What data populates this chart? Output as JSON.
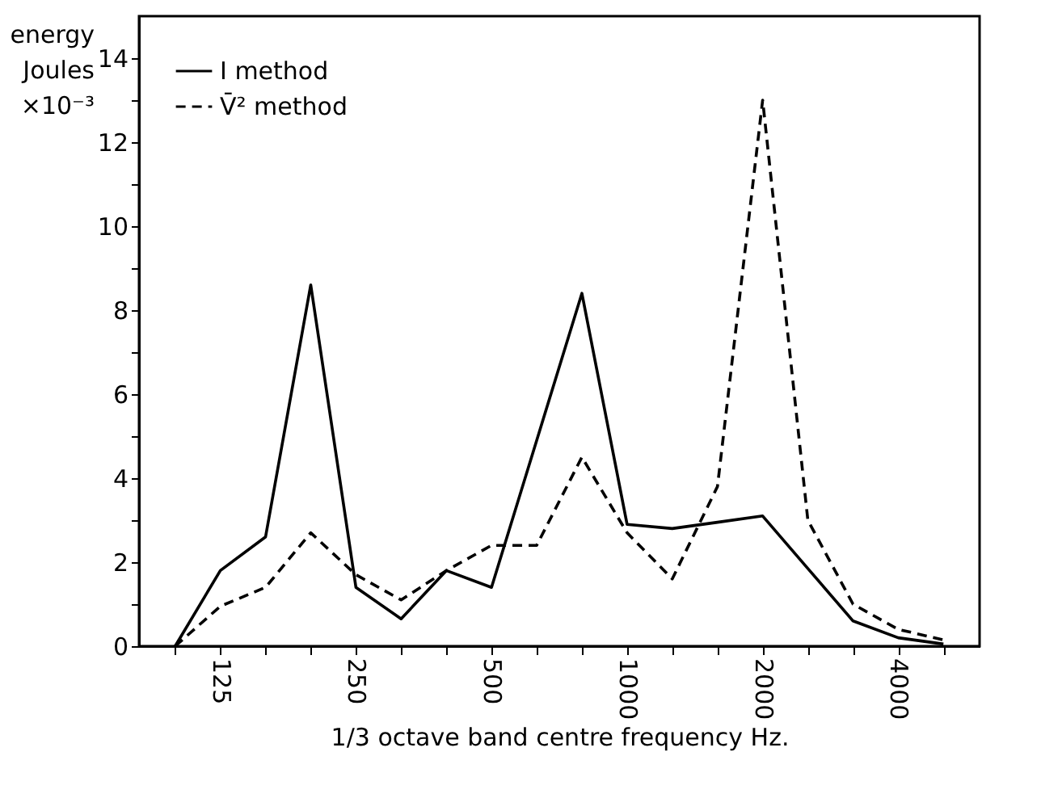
{
  "chart_data": {
    "type": "line",
    "xlabel": "1/3 octave band centre frequency      Hz.",
    "ylabel": "energy Joules ×10⁻³",
    "categories": [
      null,
      "125",
      null,
      null,
      "250",
      null,
      null,
      "500",
      null,
      null,
      "1000",
      null,
      null,
      "2000",
      null,
      null,
      "4000",
      null
    ],
    "series": [
      {
        "name": "I method",
        "color": "#000000",
        "line_style": "solid",
        "values": [
          0,
          1.8,
          2.6,
          8.6,
          1.4,
          0.65,
          1.8,
          1.4,
          4.9,
          8.4,
          2.9,
          2.8,
          2.95,
          3.1,
          1.85,
          0.6,
          0.2,
          0.05
        ]
      },
      {
        "name": "V̄² method",
        "color": "#000000",
        "line_style": "dashed",
        "values": [
          0,
          0.95,
          1.4,
          2.7,
          1.7,
          1.1,
          1.8,
          2.4,
          2.4,
          4.5,
          2.7,
          1.6,
          3.8,
          13.0,
          3.0,
          1.0,
          0.4,
          0.15
        ]
      }
    ],
    "ylim": [
      0,
      15
    ],
    "yticks": [
      0,
      {
        "value": 1,
        "label": null
      },
      2,
      {
        "value": 3,
        "label": null
      },
      4,
      {
        "value": 5,
        "label": null
      },
      6,
      {
        "value": 7,
        "label": null
      },
      8,
      {
        "value": 9,
        "label": null
      },
      10,
      {
        "value": 11,
        "label": null
      },
      12,
      {
        "value": 13,
        "label": null
      },
      14
    ],
    "grid": false,
    "legend": "top left",
    "marker": "none"
  }
}
